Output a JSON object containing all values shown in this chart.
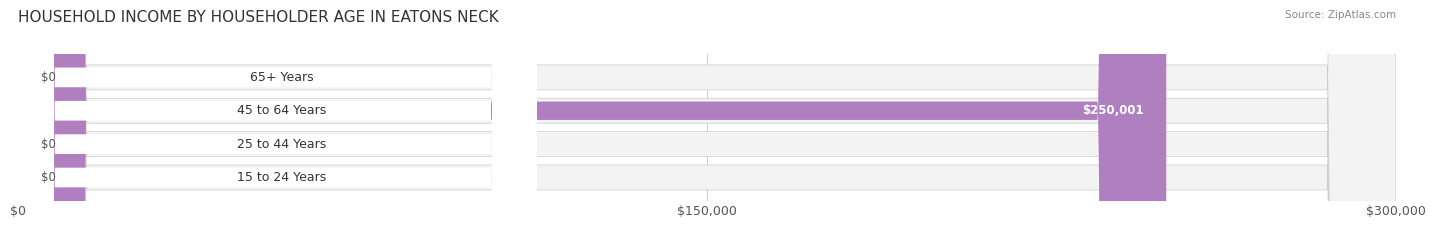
{
  "title": "HOUSEHOLD INCOME BY HOUSEHOLDER AGE IN EATONS NECK",
  "source": "Source: ZipAtlas.com",
  "categories": [
    "15 to 24 Years",
    "25 to 44 Years",
    "45 to 64 Years",
    "65+ Years"
  ],
  "values": [
    0,
    0,
    250001,
    0
  ],
  "bar_colors": [
    "#f4a0a0",
    "#a8b8e8",
    "#b07fc0",
    "#7dd4d8"
  ],
  "label_colors": [
    "#f4a0a0",
    "#a8b8e8",
    "#b07fc0",
    "#7dd4d8"
  ],
  "bar_bg_color": "#f0f0f0",
  "row_bg_colors": [
    "#f8f8f8",
    "#f8f8f8",
    "#f8f8f8",
    "#f8f8f8"
  ],
  "xlim": [
    0,
    300000
  ],
  "xticks": [
    0,
    150000,
    300000
  ],
  "xtick_labels": [
    "$0",
    "$150,000",
    "$300,000"
  ],
  "value_label_inside_color": "#ffffff",
  "value_label_outside_color": "#555555",
  "title_fontsize": 11,
  "tick_fontsize": 9,
  "bar_label_fontsize": 8.5,
  "cat_fontsize": 9
}
